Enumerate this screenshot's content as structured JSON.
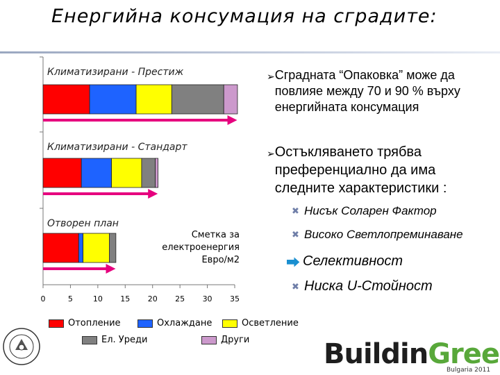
{
  "title": "Енергийна консумация на сградите:",
  "chart_data": {
    "type": "bar",
    "orientation": "horizontal",
    "stacked": true,
    "groups": [
      {
        "label": "Климатизирани - Престиж",
        "values": [
          8.5,
          8.5,
          6.5,
          9.5,
          2.5
        ]
      },
      {
        "label": "Климатизирани - Стандарт",
        "values": [
          7.0,
          5.5,
          5.5,
          2.5,
          0.5
        ]
      },
      {
        "label": "Отворен план",
        "values": [
          6.5,
          0.8,
          4.8,
          1.2,
          0.0
        ]
      }
    ],
    "series": [
      {
        "name": "Отопление",
        "color": "#ff0000"
      },
      {
        "name": "Охлаждане",
        "color": "#1e63ff"
      },
      {
        "name": "Осветление",
        "color": "#ffff00"
      },
      {
        "name": "Ел. Уреди",
        "color": "#808080"
      },
      {
        "name": "Други",
        "color": "#cc99cc"
      }
    ],
    "xlim": [
      0,
      35
    ],
    "xticks": [
      "0",
      "5",
      "10",
      "15",
      "20",
      "25",
      "30",
      "35"
    ],
    "xlabel": "Сметка за\nелектроенергия\nЕвро/м2",
    "arrow_color": "#e6007e"
  },
  "bullets": [
    "Сградната “Опаковка” може да повлияе между 70 и 90 % върху енергийната консумация",
    "Остъкляването трябва преференциално да има следните характеристики :"
  ],
  "sub_items": [
    "Нисък Соларен Фактор",
    "Високо Светлопреминаване"
  ],
  "selectivity": "Селективност",
  "last_item": "Ниска U-Стойност",
  "logo": {
    "part1": "Buildin",
    "part2": "Green",
    "sub": "Bulgaria 2011"
  }
}
